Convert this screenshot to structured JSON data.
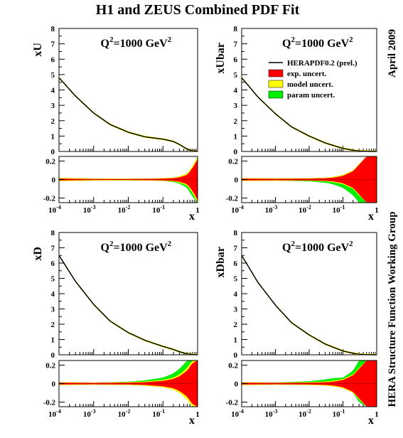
{
  "figure": {
    "title": "H1 and ZEUS Combined PDF Fit",
    "date_label": "April 2009",
    "group_label": "HERA Structure Function Working Group"
  },
  "legend": {
    "central": "HERAPDF0.2 (prel.)",
    "exp": "exp. uncert.",
    "model": "model uncert.",
    "param": "param uncert."
  },
  "colors": {
    "central": "#000000",
    "exp": "#ff0000",
    "model": "#ffff00",
    "param": "#00ee00",
    "ratio_line": "#cc0000"
  },
  "chart_data": [
    {
      "type": "line",
      "ylabel": "xU",
      "xlabel": "x",
      "annotation": "Q",
      "annotation_sup": "2",
      "annotation_rest": "=1000 GeV",
      "annotation_unit_sup": "2",
      "xscale": "log",
      "xlim": [
        0.0001,
        1
      ],
      "ylim": [
        0,
        8
      ],
      "yticks": [
        "0",
        "1",
        "2",
        "3",
        "4",
        "5",
        "6",
        "7",
        "8"
      ],
      "x": [
        0.0001,
        0.0003,
        0.001,
        0.003,
        0.01,
        0.03,
        0.1,
        0.2,
        0.3,
        0.5,
        0.7,
        1.0
      ],
      "y": [
        4.8,
        3.6,
        2.5,
        1.75,
        1.25,
        0.95,
        0.8,
        0.65,
        0.45,
        0.15,
        0.05,
        0.02
      ],
      "ratio": {
        "ylim": [
          -0.25,
          0.25
        ],
        "yticks": [
          "-0.2",
          "0",
          "0.2"
        ],
        "xticks": [
          "10",
          "10",
          "10",
          "10",
          "1"
        ],
        "xtick_exp": [
          "-4",
          "-3",
          "-2",
          "-1",
          ""
        ],
        "x": [
          0.0001,
          0.001,
          0.01,
          0.05,
          0.1,
          0.2,
          0.3,
          0.5,
          0.7,
          1.0
        ],
        "exp": [
          0.01,
          0.006,
          0.006,
          0.008,
          0.01,
          0.015,
          0.025,
          0.05,
          0.12,
          0.22
        ],
        "model": [
          0.018,
          0.012,
          0.01,
          0.012,
          0.015,
          0.022,
          0.035,
          0.065,
          0.14,
          0.25
        ],
        "param_up": [
          0.018,
          0.012,
          0.01,
          0.012,
          0.015,
          0.022,
          0.035,
          0.065,
          0.14,
          0.25
        ],
        "param_down": [
          0.018,
          0.012,
          0.01,
          0.012,
          0.015,
          0.028,
          0.045,
          0.09,
          0.18,
          0.25
        ]
      }
    },
    {
      "type": "line",
      "ylabel": "xUbar",
      "xlabel": "x",
      "annotation": "Q",
      "annotation_sup": "2",
      "annotation_rest": "=1000 GeV",
      "annotation_unit_sup": "2",
      "xscale": "log",
      "xlim": [
        0.0001,
        1
      ],
      "ylim": [
        0,
        8
      ],
      "yticks": [
        "0",
        "1",
        "2",
        "3",
        "4",
        "5",
        "6",
        "7",
        "8"
      ],
      "x": [
        0.0001,
        0.0003,
        0.001,
        0.003,
        0.01,
        0.03,
        0.1,
        0.2,
        0.3,
        0.5,
        0.7,
        1.0
      ],
      "y": [
        4.8,
        3.55,
        2.45,
        1.6,
        1.0,
        0.55,
        0.2,
        0.08,
        0.03,
        0.01,
        0.005,
        0.0
      ],
      "ratio": {
        "ylim": [
          -0.25,
          0.25
        ],
        "yticks": [
          "-0.2",
          "0",
          "0.2"
        ],
        "xticks": [
          "10",
          "10",
          "10",
          "10",
          "1"
        ],
        "xtick_exp": [
          "-4",
          "-3",
          "-2",
          "-1",
          ""
        ],
        "x": [
          0.0001,
          0.001,
          0.01,
          0.03,
          0.05,
          0.1,
          0.2,
          0.3,
          0.5,
          1.0
        ],
        "exp": [
          0.01,
          0.008,
          0.01,
          0.015,
          0.02,
          0.04,
          0.09,
          0.16,
          0.25,
          0.25
        ],
        "model": [
          0.016,
          0.013,
          0.014,
          0.02,
          0.028,
          0.05,
          0.1,
          0.17,
          0.25,
          0.25
        ],
        "param_up": [
          0.016,
          0.013,
          0.014,
          0.02,
          0.028,
          0.05,
          0.1,
          0.17,
          0.25,
          0.25
        ],
        "param_down": [
          0.016,
          0.013,
          0.02,
          0.035,
          0.05,
          0.09,
          0.17,
          0.25,
          0.25,
          0.25
        ]
      }
    },
    {
      "type": "line",
      "ylabel": "xD",
      "xlabel": "x",
      "annotation": "Q",
      "annotation_sup": "2",
      "annotation_rest": "=1000 GeV",
      "annotation_unit_sup": "2",
      "xscale": "log",
      "xlim": [
        0.0001,
        1
      ],
      "ylim": [
        0,
        8
      ],
      "yticks": [
        "0",
        "1",
        "2",
        "3",
        "4",
        "5",
        "6",
        "7",
        "8"
      ],
      "x": [
        0.0001,
        0.0003,
        0.001,
        0.003,
        0.01,
        0.03,
        0.1,
        0.2,
        0.3,
        0.5,
        0.7,
        1.0
      ],
      "y": [
        6.5,
        4.8,
        3.3,
        2.2,
        1.45,
        0.95,
        0.55,
        0.35,
        0.2,
        0.06,
        0.02,
        0.0
      ],
      "ratio": {
        "ylim": [
          -0.25,
          0.25
        ],
        "yticks": [
          "-0.2",
          "0",
          "0.2"
        ],
        "xticks": [
          "10",
          "10",
          "10",
          "10",
          "1"
        ],
        "xtick_exp": [
          "-4",
          "-3",
          "-2",
          "-1",
          ""
        ],
        "x": [
          0.0001,
          0.001,
          0.01,
          0.03,
          0.1,
          0.2,
          0.3,
          0.5,
          0.7,
          1.0
        ],
        "exp": [
          0.01,
          0.008,
          0.01,
          0.015,
          0.03,
          0.05,
          0.08,
          0.14,
          0.22,
          0.25
        ],
        "model": [
          0.016,
          0.012,
          0.015,
          0.022,
          0.04,
          0.065,
          0.1,
          0.17,
          0.25,
          0.25
        ],
        "param_up": [
          0.016,
          0.012,
          0.02,
          0.035,
          0.065,
          0.11,
          0.16,
          0.25,
          0.25,
          0.25
        ],
        "param_down": [
          0.016,
          0.012,
          0.015,
          0.022,
          0.04,
          0.065,
          0.1,
          0.17,
          0.25,
          0.25
        ]
      }
    },
    {
      "type": "line",
      "ylabel": "xDbar",
      "xlabel": "x",
      "annotation": "Q",
      "annotation_sup": "2",
      "annotation_rest": "=1000 GeV",
      "annotation_unit_sup": "2",
      "xscale": "log",
      "xlim": [
        0.0001,
        1
      ],
      "ylim": [
        0,
        8
      ],
      "yticks": [
        "0",
        "1",
        "2",
        "3",
        "4",
        "5",
        "6",
        "7",
        "8"
      ],
      "x": [
        0.0001,
        0.0003,
        0.001,
        0.003,
        0.01,
        0.03,
        0.1,
        0.2,
        0.3,
        0.5,
        0.7,
        1.0
      ],
      "y": [
        6.5,
        4.75,
        3.25,
        2.1,
        1.3,
        0.7,
        0.25,
        0.1,
        0.04,
        0.01,
        0.005,
        0.0
      ],
      "ratio": {
        "ylim": [
          -0.25,
          0.25
        ],
        "yticks": [
          "-0.2",
          "0",
          "0.2"
        ],
        "xticks": [
          "10",
          "10",
          "10",
          "10",
          "1"
        ],
        "xtick_exp": [
          "-4",
          "-3",
          "-2",
          "-1",
          ""
        ],
        "x": [
          0.0001,
          0.001,
          0.01,
          0.03,
          0.05,
          0.1,
          0.2,
          0.3,
          0.5,
          1.0
        ],
        "exp": [
          0.01,
          0.008,
          0.01,
          0.015,
          0.02,
          0.04,
          0.09,
          0.16,
          0.25,
          0.25
        ],
        "model": [
          0.016,
          0.012,
          0.015,
          0.022,
          0.03,
          0.05,
          0.1,
          0.17,
          0.25,
          0.25
        ],
        "param_up": [
          0.016,
          0.013,
          0.025,
          0.045,
          0.06,
          0.065,
          0.14,
          0.25,
          0.25,
          0.25
        ],
        "param_down": [
          0.016,
          0.012,
          0.015,
          0.022,
          0.03,
          0.05,
          0.1,
          0.2,
          0.25,
          0.25
        ]
      }
    }
  ]
}
